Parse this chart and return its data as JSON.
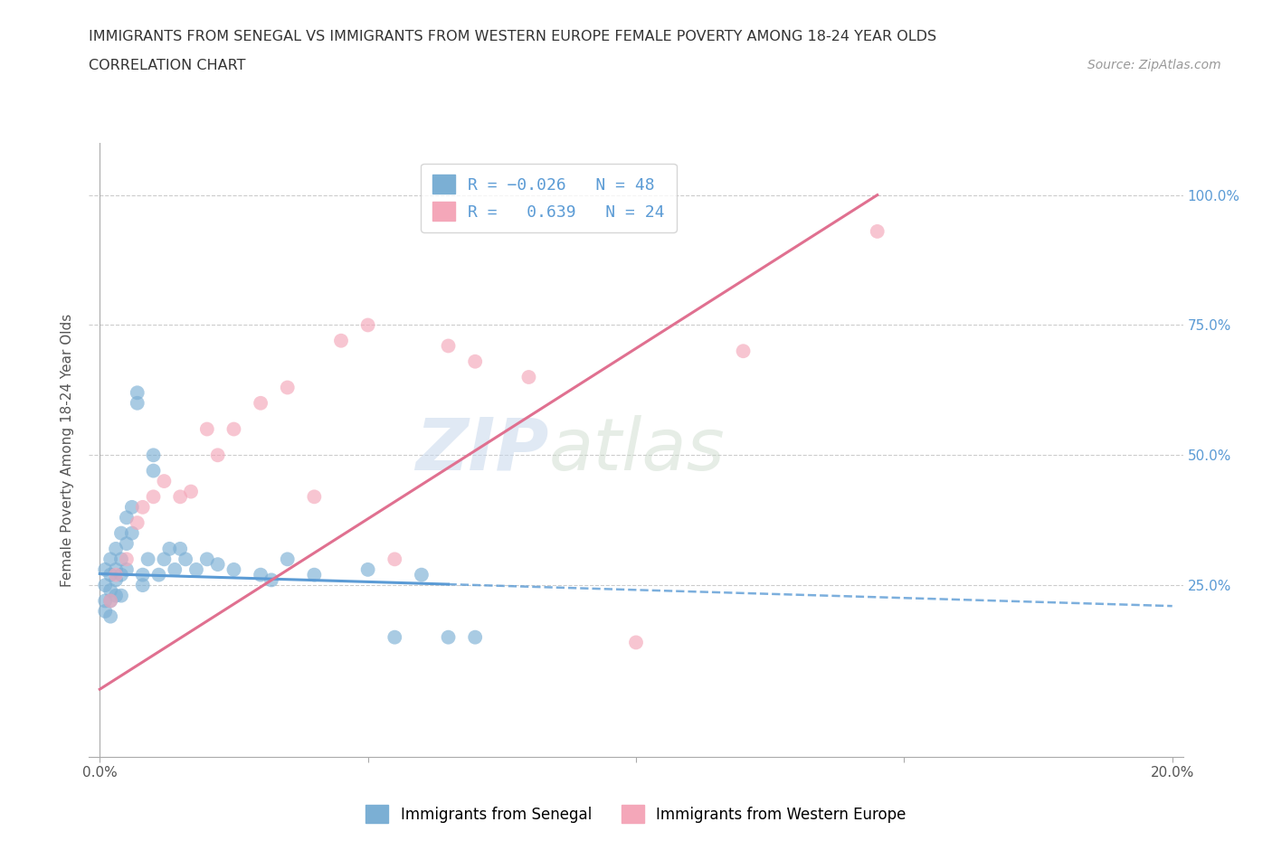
{
  "title_line1": "IMMIGRANTS FROM SENEGAL VS IMMIGRANTS FROM WESTERN EUROPE FEMALE POVERTY AMONG 18-24 YEAR OLDS",
  "title_line2": "CORRELATION CHART",
  "source_text": "Source: ZipAtlas.com",
  "ylabel": "Female Poverty Among 18-24 Year Olds",
  "color_blue": "#7BAFD4",
  "color_pink": "#F4A7B9",
  "color_blue_line": "#5B9BD5",
  "color_pink_line": "#E07090",
  "watermark_zip": "ZIP",
  "watermark_atlas": "atlas",
  "senegal_x": [
    0.001,
    0.001,
    0.001,
    0.001,
    0.002,
    0.002,
    0.002,
    0.002,
    0.002,
    0.003,
    0.003,
    0.003,
    0.003,
    0.004,
    0.004,
    0.004,
    0.004,
    0.005,
    0.005,
    0.005,
    0.006,
    0.006,
    0.007,
    0.007,
    0.008,
    0.008,
    0.009,
    0.01,
    0.01,
    0.011,
    0.012,
    0.013,
    0.014,
    0.015,
    0.016,
    0.018,
    0.02,
    0.022,
    0.025,
    0.03,
    0.032,
    0.035,
    0.04,
    0.05,
    0.055,
    0.06,
    0.065,
    0.07
  ],
  "senegal_y": [
    0.28,
    0.25,
    0.22,
    0.2,
    0.3,
    0.27,
    0.24,
    0.22,
    0.19,
    0.32,
    0.28,
    0.26,
    0.23,
    0.35,
    0.3,
    0.27,
    0.23,
    0.38,
    0.33,
    0.28,
    0.4,
    0.35,
    0.62,
    0.6,
    0.27,
    0.25,
    0.3,
    0.5,
    0.47,
    0.27,
    0.3,
    0.32,
    0.28,
    0.32,
    0.3,
    0.28,
    0.3,
    0.29,
    0.28,
    0.27,
    0.26,
    0.3,
    0.27,
    0.28,
    0.15,
    0.27,
    0.15,
    0.15
  ],
  "western_europe_x": [
    0.002,
    0.003,
    0.005,
    0.007,
    0.008,
    0.01,
    0.012,
    0.015,
    0.017,
    0.02,
    0.022,
    0.025,
    0.03,
    0.035,
    0.04,
    0.045,
    0.05,
    0.055,
    0.065,
    0.07,
    0.08,
    0.1,
    0.12,
    0.145
  ],
  "western_europe_y": [
    0.22,
    0.27,
    0.3,
    0.37,
    0.4,
    0.42,
    0.45,
    0.42,
    0.43,
    0.55,
    0.5,
    0.55,
    0.6,
    0.63,
    0.42,
    0.72,
    0.75,
    0.3,
    0.71,
    0.68,
    0.65,
    0.14,
    0.7,
    0.93
  ],
  "blue_line_x": [
    0.0,
    0.2
  ],
  "blue_line_y": [
    0.272,
    0.21
  ],
  "pink_line_x": [
    0.0,
    0.145
  ],
  "pink_line_y": [
    0.05,
    1.0
  ],
  "xlim_min": -0.002,
  "xlim_max": 0.202,
  "ylim_min": -0.08,
  "ylim_max": 1.1,
  "ytick_positions": [
    0.0,
    0.25,
    0.5,
    0.75,
    1.0
  ],
  "ytick_labels_right": [
    "",
    "25.0%",
    "50.0%",
    "75.0%",
    "100.0%"
  ],
  "xtick_positions": [
    0.0,
    0.05,
    0.1,
    0.15,
    0.2
  ],
  "xtick_labels": [
    "0.0%",
    "",
    "",
    "",
    "20.0%"
  ]
}
